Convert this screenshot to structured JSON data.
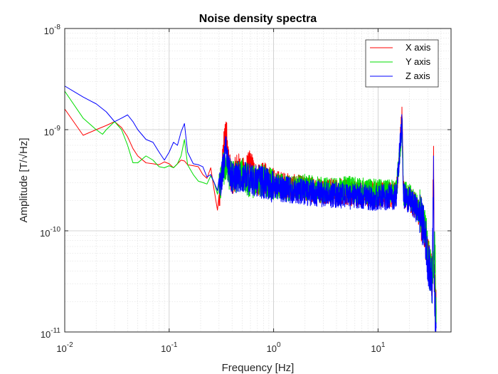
{
  "chart_data": {
    "type": "line",
    "title": "Noise density spectra",
    "xlabel": "Frequency [Hz]",
    "ylabel": "Amplitude [T/√Hz]",
    "xscale": "log",
    "yscale": "log",
    "xlim": [
      0.01,
      50
    ],
    "ylim": [
      1e-11,
      1e-08
    ],
    "x_ticks": [
      0.01,
      0.1,
      1,
      10
    ],
    "x_tick_labels": [
      [
        "10",
        "-2"
      ],
      [
        "10",
        "-1"
      ],
      [
        "10",
        "0"
      ],
      [
        "10",
        "1"
      ]
    ],
    "y_ticks": [
      1e-11,
      1e-10,
      1e-09,
      1e-08
    ],
    "y_tick_labels": [
      [
        "10",
        "-11"
      ],
      [
        "10",
        "-10"
      ],
      [
        "10",
        "-9"
      ],
      [
        "10",
        "-8"
      ]
    ],
    "grid": true,
    "minor_grid": true,
    "legend_position": "top-right",
    "series": [
      {
        "name": "X axis",
        "color": "#ff0000",
        "points": [
          [
            0.01,
            1.6e-09
          ],
          [
            0.015,
            8.8e-10
          ],
          [
            0.02,
            1e-09
          ],
          [
            0.025,
            1.1e-09
          ],
          [
            0.03,
            1.2e-09
          ],
          [
            0.035,
            1.05e-09
          ],
          [
            0.04,
            8.5e-10
          ],
          [
            0.045,
            6.5e-10
          ],
          [
            0.05,
            5.5e-10
          ],
          [
            0.06,
            4.7e-10
          ],
          [
            0.07,
            4.6e-10
          ],
          [
            0.08,
            4.5e-10
          ],
          [
            0.09,
            4.8e-10
          ],
          [
            0.1,
            4.6e-10
          ],
          [
            0.11,
            4.2e-10
          ],
          [
            0.12,
            4.6e-10
          ],
          [
            0.13,
            5e-10
          ],
          [
            0.14,
            4.9e-10
          ],
          [
            0.15,
            4.5e-10
          ],
          [
            0.17,
            4.4e-10
          ],
          [
            0.19,
            4.3e-10
          ],
          [
            0.21,
            3.6e-10
          ],
          [
            0.23,
            3.3e-10
          ],
          [
            0.25,
            4.2e-10
          ],
          [
            0.27,
            2.5e-10
          ],
          [
            0.29,
            1.6e-10
          ],
          [
            0.31,
            2.5e-10
          ],
          [
            0.33,
            6e-10
          ],
          [
            0.35,
            1.05e-09
          ],
          [
            0.37,
            5e-10
          ],
          [
            0.4,
            3e-10
          ],
          [
            0.45,
            4.3e-10
          ],
          [
            0.5,
            3.6e-10
          ],
          [
            0.6,
            4.4e-10
          ],
          [
            0.7,
            3.1e-10
          ],
          [
            0.8,
            3.3e-10
          ],
          [
            1.0,
            3e-10
          ],
          [
            1.5,
            2.7e-10
          ],
          [
            2,
            2.6e-10
          ],
          [
            3,
            2.5e-10
          ],
          [
            5,
            2.4e-10
          ],
          [
            7,
            2.3e-10
          ],
          [
            10,
            2.3e-10
          ],
          [
            15,
            2.3e-10
          ],
          [
            17,
            1.35e-09
          ],
          [
            17.5,
            2.3e-10
          ],
          [
            20,
            2.1e-10
          ],
          [
            25,
            1.5e-10
          ],
          [
            28,
            1e-10
          ],
          [
            30,
            6e-11
          ],
          [
            33,
            3.5e-11
          ],
          [
            34,
            6e-10
          ],
          [
            34.5,
            3e-11
          ],
          [
            36,
            1.5e-11
          ]
        ]
      },
      {
        "name": "Y axis",
        "color": "#00dd00",
        "points": [
          [
            0.01,
            2.4e-09
          ],
          [
            0.015,
            1.3e-09
          ],
          [
            0.02,
            1e-09
          ],
          [
            0.023,
            9e-10
          ],
          [
            0.025,
            1e-09
          ],
          [
            0.03,
            1.2e-09
          ],
          [
            0.035,
            1e-09
          ],
          [
            0.04,
            7e-10
          ],
          [
            0.045,
            4.7e-10
          ],
          [
            0.05,
            4.7e-10
          ],
          [
            0.06,
            5.5e-10
          ],
          [
            0.07,
            5e-10
          ],
          [
            0.08,
            4.3e-10
          ],
          [
            0.09,
            4.2e-10
          ],
          [
            0.1,
            4.4e-10
          ],
          [
            0.11,
            4.2e-10
          ],
          [
            0.12,
            4.6e-10
          ],
          [
            0.13,
            5.5e-10
          ],
          [
            0.14,
            8e-10
          ],
          [
            0.15,
            4.5e-10
          ],
          [
            0.17,
            3.6e-10
          ],
          [
            0.19,
            3.1e-10
          ],
          [
            0.21,
            3e-10
          ],
          [
            0.23,
            2.9e-10
          ],
          [
            0.25,
            3.5e-10
          ],
          [
            0.27,
            3e-10
          ],
          [
            0.29,
            2.3e-10
          ],
          [
            0.31,
            3e-10
          ],
          [
            0.33,
            4.2e-10
          ],
          [
            0.35,
            4e-10
          ],
          [
            0.4,
            3.4e-10
          ],
          [
            0.5,
            3.6e-10
          ],
          [
            0.6,
            3e-10
          ],
          [
            0.8,
            3.2e-10
          ],
          [
            1.0,
            2.8e-10
          ],
          [
            1.5,
            2.6e-10
          ],
          [
            2,
            2.7e-10
          ],
          [
            3,
            2.5e-10
          ],
          [
            5,
            2.6e-10
          ],
          [
            7,
            2.5e-10
          ],
          [
            10,
            2.4e-10
          ],
          [
            15,
            2.4e-10
          ],
          [
            17,
            1.15e-09
          ],
          [
            17.5,
            2.4e-10
          ],
          [
            20,
            2.2e-10
          ],
          [
            25,
            1.6e-10
          ],
          [
            28,
            1.1e-10
          ],
          [
            30,
            6e-11
          ],
          [
            33,
            3e-11
          ],
          [
            35,
            7e-11
          ],
          [
            36,
            1.2e-11
          ]
        ]
      },
      {
        "name": "Z axis",
        "color": "#0000ff",
        "points": [
          [
            0.01,
            2.7e-09
          ],
          [
            0.015,
            2.1e-09
          ],
          [
            0.02,
            1.8e-09
          ],
          [
            0.025,
            1.5e-09
          ],
          [
            0.03,
            1.2e-09
          ],
          [
            0.035,
            1.3e-09
          ],
          [
            0.04,
            1.4e-09
          ],
          [
            0.045,
            1.2e-09
          ],
          [
            0.05,
            1e-09
          ],
          [
            0.06,
            8e-10
          ],
          [
            0.07,
            7.5e-10
          ],
          [
            0.08,
            6e-10
          ],
          [
            0.09,
            5e-10
          ],
          [
            0.1,
            6e-10
          ],
          [
            0.11,
            7.5e-10
          ],
          [
            0.12,
            7e-10
          ],
          [
            0.13,
            9.5e-10
          ],
          [
            0.14,
            1.15e-09
          ],
          [
            0.15,
            6e-10
          ],
          [
            0.17,
            4.6e-10
          ],
          [
            0.19,
            4.5e-10
          ],
          [
            0.21,
            4.3e-10
          ],
          [
            0.23,
            3.4e-10
          ],
          [
            0.25,
            3.6e-10
          ],
          [
            0.27,
            3e-10
          ],
          [
            0.29,
            2.5e-10
          ],
          [
            0.31,
            3e-10
          ],
          [
            0.33,
            4.2e-10
          ],
          [
            0.35,
            7e-10
          ],
          [
            0.37,
            4e-10
          ],
          [
            0.4,
            3.3e-10
          ],
          [
            0.5,
            3.5e-10
          ],
          [
            0.6,
            3.2e-10
          ],
          [
            0.8,
            3e-10
          ],
          [
            1.0,
            2.7e-10
          ],
          [
            1.5,
            2.5e-10
          ],
          [
            2,
            2.4e-10
          ],
          [
            3,
            2.3e-10
          ],
          [
            5,
            2.2e-10
          ],
          [
            7,
            2.2e-10
          ],
          [
            10,
            2.1e-10
          ],
          [
            15,
            2.2e-10
          ],
          [
            17,
            1.3e-09
          ],
          [
            17.5,
            2.2e-10
          ],
          [
            20,
            2e-10
          ],
          [
            25,
            1.5e-10
          ],
          [
            28,
            1e-10
          ],
          [
            30,
            5e-11
          ],
          [
            33,
            3e-11
          ],
          [
            34,
            5.5e-10
          ],
          [
            34.5,
            2.5e-11
          ],
          [
            36,
            1.1e-11
          ]
        ]
      }
    ]
  }
}
